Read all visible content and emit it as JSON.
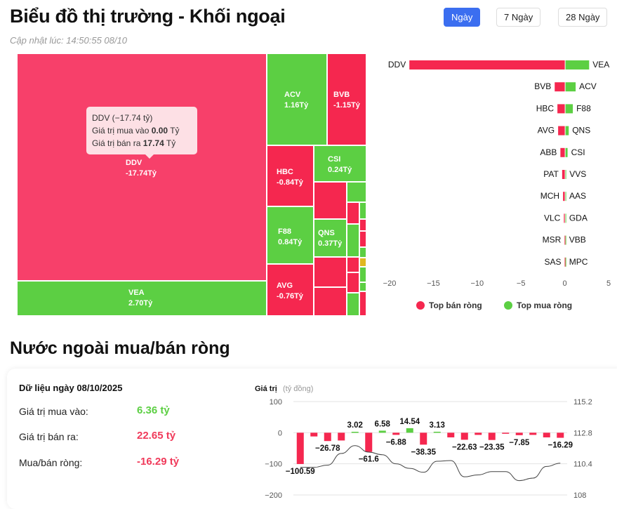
{
  "header": {
    "title": "Biểu đồ thị trường - Khối ngoại",
    "updated": "Cập nhật lúc: 14:50:55 08/10",
    "tabs": [
      {
        "label": "Ngày",
        "active": true
      },
      {
        "label": "7 Ngày",
        "active": false
      },
      {
        "label": "28 Ngày",
        "active": false
      }
    ]
  },
  "colors": {
    "sell": "#f5274f",
    "buy": "#5ccf43",
    "accent": "#3b6ef0"
  },
  "treemap": {
    "cells": [
      {
        "code": "DDV",
        "value": "-17.74Tỷ"
      },
      {
        "code": "VEA",
        "value": "2.70Tỷ"
      },
      {
        "code": "ACV",
        "value": "1.16Tỷ"
      },
      {
        "code": "BVB",
        "value": "-1.15Tỷ"
      },
      {
        "code": "HBC",
        "value": "-0.84Tỷ"
      },
      {
        "code": "CSI",
        "value": "0.24Tỷ"
      },
      {
        "code": "F88",
        "value": "0.84Tỷ"
      },
      {
        "code": "QNS",
        "value": "0.37Tỷ"
      },
      {
        "code": "AVG",
        "value": "-0.76Tỷ"
      }
    ],
    "tooltip": {
      "title": "DDV (−17.74 tỷ)",
      "buy_label": "Giá trị mua vào",
      "buy_value": "0.00",
      "sell_label": "Giá trị bán ra",
      "sell_value": "17.74",
      "unit": "Tỷ"
    }
  },
  "chart_data": [
    {
      "type": "bar",
      "orientation": "horizontal",
      "xlim": [
        -20,
        5
      ],
      "ticks": [
        "−20",
        "−15",
        "−10",
        "−5",
        "0",
        "5"
      ],
      "sell": [
        {
          "code": "DDV",
          "value": -17.74
        },
        {
          "code": "BVB",
          "value": -1.15
        },
        {
          "code": "HBC",
          "value": -0.84
        },
        {
          "code": "AVG",
          "value": -0.76
        },
        {
          "code": "ABB",
          "value": -0.5
        },
        {
          "code": "PAT",
          "value": -0.3
        },
        {
          "code": "MCH",
          "value": -0.2
        },
        {
          "code": "VLC",
          "value": -0.1
        },
        {
          "code": "MSR",
          "value": -0.02
        },
        {
          "code": "SAS",
          "value": -0.01
        }
      ],
      "buy": [
        {
          "code": "VEA",
          "value": 2.7
        },
        {
          "code": "ACV",
          "value": 1.16
        },
        {
          "code": "F88",
          "value": 0.84
        },
        {
          "code": "QNS",
          "value": 0.37
        },
        {
          "code": "CSI",
          "value": 0.24
        },
        {
          "code": "VVS",
          "value": 0.05
        },
        {
          "code": "AAS",
          "value": 0.03
        },
        {
          "code": "GDA",
          "value": 0.02
        },
        {
          "code": "VBB",
          "value": 0.01
        },
        {
          "code": "MPC",
          "value": 0.01
        }
      ],
      "legend": [
        "Top bán ròng",
        "Top mua ròng"
      ]
    },
    {
      "type": "bar+line",
      "ylabel": "Giá trị",
      "yunit": "(tỷ đồng)",
      "ylim": [
        -200,
        100
      ],
      "yticks": [
        "100",
        "0",
        "−100",
        "−200"
      ],
      "y2lim": [
        108,
        115.2
      ],
      "y2ticks": [
        "115.2",
        "112.8",
        "110.4",
        "108"
      ],
      "values": [
        -100.59,
        -12,
        -26.78,
        -25,
        3.02,
        -61.6,
        6.58,
        -6.88,
        14.54,
        -38.35,
        3.13,
        -15,
        -22.63,
        -7,
        -23.35,
        -2,
        -7.85,
        -7,
        -15,
        -16.29
      ],
      "labels": [
        "−100.59",
        "",
        "−26.78",
        "",
        "3.02",
        "−61.6",
        "6.58",
        "−6.88",
        "14.54",
        "−38.35",
        "3.13",
        "",
        "−22.63",
        "",
        "−23.35",
        "",
        "−7.85",
        "",
        "",
        "−16.29"
      ],
      "line": [
        110.13,
        110.13,
        110.3,
        111.2,
        111.8,
        111.3,
        111.1,
        110.4,
        110.05,
        109.75,
        110.6,
        110.65,
        109.4,
        109.55,
        109.8,
        109.8,
        109.1,
        109.3,
        110.2,
        110.45
      ]
    }
  ],
  "net": {
    "heading": "Nước ngoài mua/bán ròng",
    "date_title": "Dữ liệu ngày 08/10/2025",
    "rows": [
      {
        "label": "Giá trị mua vào:",
        "value": "6.36 tỷ",
        "color": "#5ccf43"
      },
      {
        "label": "Giá trị bán ra:",
        "value": "22.65 tỷ",
        "color": "#f03a5a"
      },
      {
        "label": "Mua/bán ròng:",
        "value": "-16.29 tỷ",
        "color": "#f03a5a"
      }
    ]
  }
}
